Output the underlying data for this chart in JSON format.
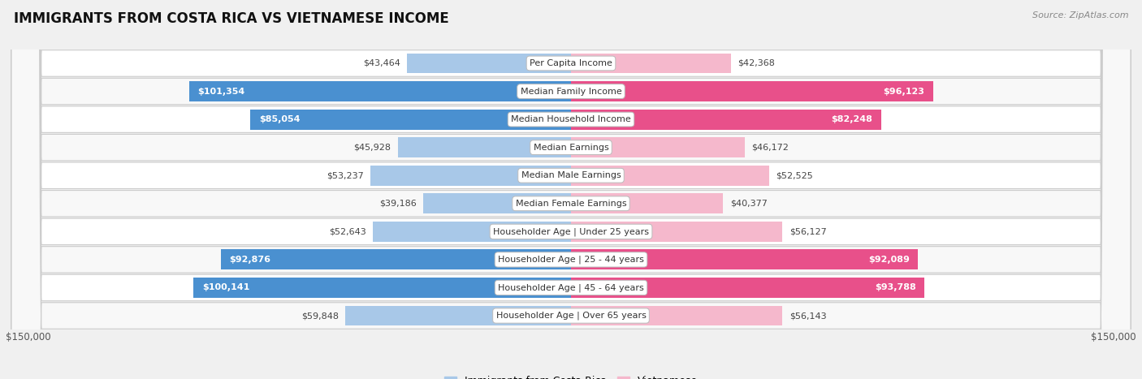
{
  "title": "IMMIGRANTS FROM COSTA RICA VS VIETNAMESE INCOME",
  "source": "Source: ZipAtlas.com",
  "categories": [
    "Per Capita Income",
    "Median Family Income",
    "Median Household Income",
    "Median Earnings",
    "Median Male Earnings",
    "Median Female Earnings",
    "Householder Age | Under 25 years",
    "Householder Age | 25 - 44 years",
    "Householder Age | 45 - 64 years",
    "Householder Age | Over 65 years"
  ],
  "costa_rica_values": [
    43464,
    101354,
    85054,
    45928,
    53237,
    39186,
    52643,
    92876,
    100141,
    59848
  ],
  "vietnamese_values": [
    42368,
    96123,
    82248,
    46172,
    52525,
    40377,
    56127,
    92089,
    93788,
    56143
  ],
  "costa_rica_labels": [
    "$43,464",
    "$101,354",
    "$85,054",
    "$45,928",
    "$53,237",
    "$39,186",
    "$52,643",
    "$92,876",
    "$100,141",
    "$59,848"
  ],
  "vietnamese_labels": [
    "$42,368",
    "$96,123",
    "$82,248",
    "$46,172",
    "$52,525",
    "$40,377",
    "$56,127",
    "$92,089",
    "$93,788",
    "$56,143"
  ],
  "max_value": 150000,
  "bar_color_costa_rica_light": "#a8c8e8",
  "bar_color_costa_rica_dark": "#4a90d0",
  "bar_color_vietnamese_light": "#f5b8cc",
  "bar_color_vietnamese_dark": "#e8508a",
  "label_threshold": 75000,
  "bg_color": "#f0f0f0",
  "row_bg_light": "#f8f8f8",
  "row_bg_white": "#ffffff",
  "legend_costa_rica": "Immigrants from Costa Rica",
  "legend_vietnamese": "Vietnamese",
  "bottom_label_left": "$150,000",
  "bottom_label_right": "$150,000"
}
